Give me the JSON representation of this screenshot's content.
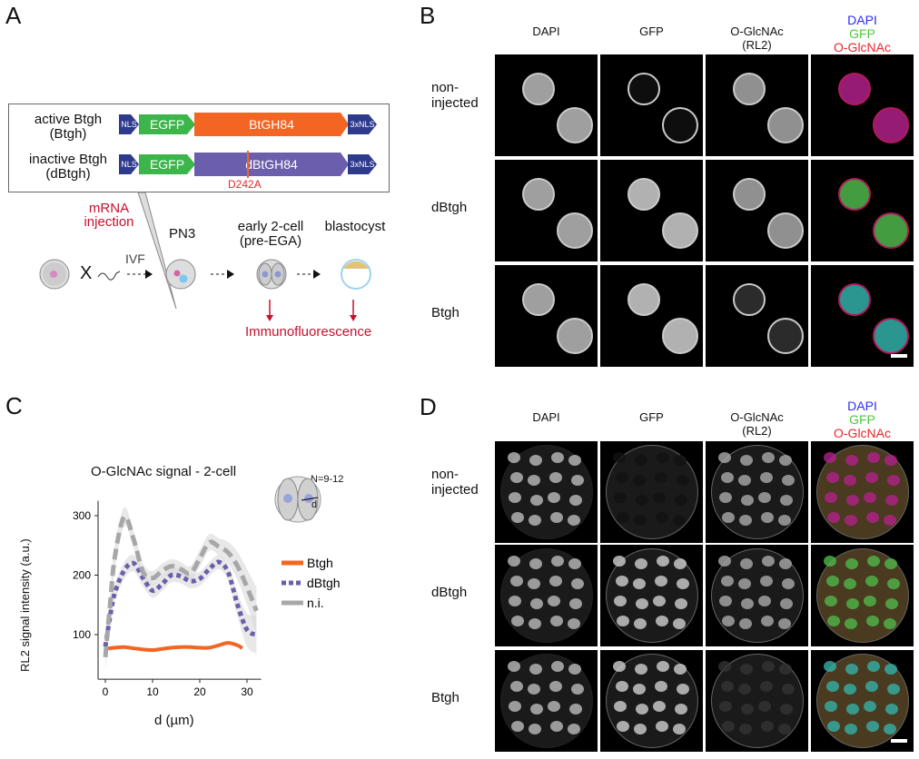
{
  "panels": {
    "A": "A",
    "B": "B",
    "C": "C",
    "D": "D"
  },
  "constructs": {
    "active_name": "active Btgh",
    "active_abbr": "(Btgh)",
    "inactive_name": "inactive Btgh",
    "inactive_abbr": "(dBtgh)",
    "nls": "NLS",
    "egfp": "EGFP",
    "btgh84": "BtGH84",
    "dbtgh84": "dBtGH84",
    "nls3": "3xNLS",
    "mutation": "D242A"
  },
  "workflow": {
    "injection": "mRNA\ninjection",
    "x": "X",
    "ivf": "IVF",
    "pn3": "PN3",
    "two_cell": "early 2-cell\n(pre-EGA)",
    "blastocyst": "blastocyst",
    "readout": "Immunofluorescence"
  },
  "micrographs": {
    "columns": [
      "DAPI",
      "GFP",
      "O-GlcNAc\n(RL2)"
    ],
    "merge": {
      "dapi": "DAPI",
      "gfp": "GFP",
      "oglc": "O-GlcNAc"
    },
    "rows": [
      "non-\ninjected",
      "dBtgh",
      "Btgh"
    ]
  },
  "colors": {
    "orange": "#f26522",
    "purple": "#6b5fad",
    "green": "#3cb54a",
    "navy": "#2e3a8c",
    "red": "#c8102e",
    "gray": "#a7a7a9"
  },
  "chart_data": {
    "type": "line",
    "title": "O-GlcNAc signal - 2-cell",
    "annotation": "N=9-12",
    "schematic_label": "d",
    "xlabel": "d (µm)",
    "ylabel": "RL2 signal intensity (a.u.)",
    "xlim": [
      -1.5,
      33
    ],
    "ylim": [
      25,
      325
    ],
    "xticks": [
      0,
      10,
      20,
      30
    ],
    "yticks": [
      100,
      200,
      300
    ],
    "legend_position": "right",
    "series": [
      {
        "name": "Btgh",
        "color": "#f26522",
        "style": "solid",
        "x": [
          0,
          2,
          4,
          6,
          8,
          10,
          12,
          14,
          16,
          18,
          20,
          22,
          24,
          26,
          28,
          29
        ],
        "y": [
          76,
          78,
          79,
          77,
          75,
          74,
          76,
          78,
          79,
          79,
          78,
          78,
          82,
          86,
          82,
          77
        ]
      },
      {
        "name": "dBtgh",
        "color": "#6b5fad",
        "style": "dotted",
        "x": [
          0,
          1,
          2,
          4,
          6,
          8,
          10,
          12,
          14,
          16,
          18,
          20,
          22,
          24,
          26,
          28,
          30,
          32
        ],
        "y": [
          80,
          130,
          170,
          208,
          220,
          195,
          174,
          185,
          200,
          198,
          190,
          194,
          210,
          222,
          205,
          150,
          108,
          100
        ],
        "band": [
          14,
          14,
          14,
          14,
          14,
          14,
          12,
          12,
          12,
          12,
          12,
          12,
          12,
          12,
          14,
          20,
          28,
          32
        ]
      },
      {
        "name": "n.i.",
        "color": "#a7a7a9",
        "style": "dashed",
        "x": [
          0,
          1,
          2,
          4,
          6,
          8,
          10,
          12,
          14,
          16,
          18,
          20,
          22,
          24,
          26,
          28,
          30,
          32
        ],
        "y": [
          62,
          150,
          230,
          298,
          260,
          205,
          195,
          207,
          215,
          210,
          203,
          228,
          255,
          248,
          238,
          215,
          180,
          140
        ],
        "band": [
          22,
          22,
          20,
          16,
          14,
          14,
          12,
          12,
          12,
          12,
          12,
          14,
          14,
          14,
          18,
          24,
          30,
          40
        ]
      }
    ]
  }
}
